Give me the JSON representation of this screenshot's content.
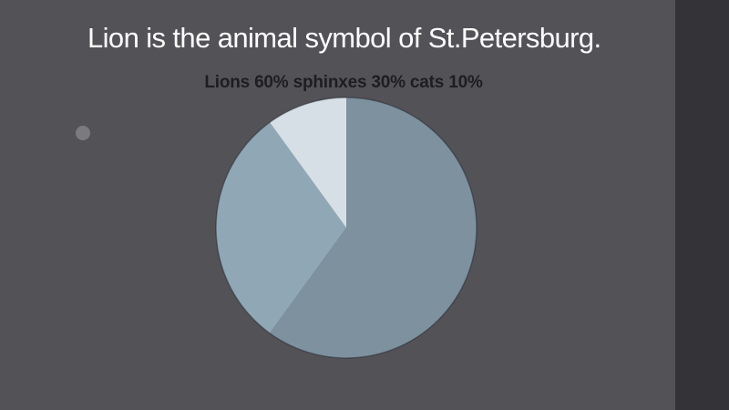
{
  "slide": {
    "title": "Lion is the animal symbol of St.Petersburg.",
    "colors": {
      "background": "#535257",
      "right_panel": "#333338",
      "title_text": "#ffffff",
      "chart_title_text": "#1e1e21",
      "bullet_dot": "#7a7a7f"
    }
  },
  "chart_data": {
    "type": "pie",
    "title": "Lions 60% sphinxes 30% cats 10%",
    "start_angle_deg": 0,
    "direction": "clockwise",
    "legend_position": "none",
    "labels_on_chart": false,
    "slices": [
      {
        "label": "Lions",
        "value": 60,
        "unit": "%",
        "color": "#7e919e"
      },
      {
        "label": "sphinxes",
        "value": 30,
        "unit": "%",
        "color": "#90a7b5"
      },
      {
        "label": "cats",
        "value": 10,
        "unit": "%",
        "color": "#d5dfe5"
      }
    ],
    "outline_color": "rgba(32,36,44,0.45)"
  }
}
